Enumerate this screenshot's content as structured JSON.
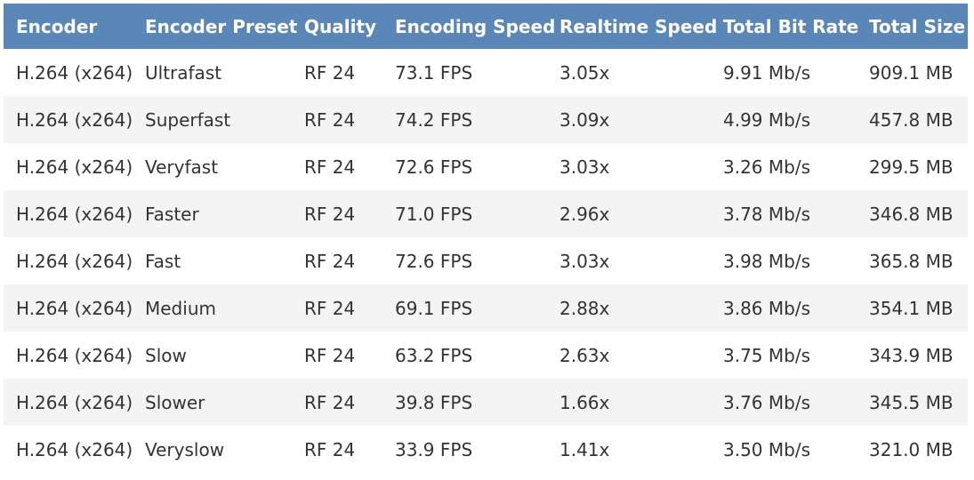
{
  "table": {
    "headers": [
      "Encoder",
      "Encoder Preset",
      "Quality",
      "Encoding Speed",
      "Realtime Speed",
      "Total Bit Rate",
      "Total Size"
    ],
    "rows": [
      [
        "H.264 (x264)",
        "Ultrafast",
        "RF 24",
        "73.1 FPS",
        "3.05x",
        "9.91 Mb/s",
        "909.1 MB"
      ],
      [
        "H.264 (x264)",
        "Superfast",
        "RF 24",
        "74.2 FPS",
        "3.09x",
        "4.99 Mb/s",
        "457.8 MB"
      ],
      [
        "H.264 (x264)",
        "Veryfast",
        "RF 24",
        "72.6 FPS",
        "3.03x",
        "3.26 Mb/s",
        "299.5 MB"
      ],
      [
        "H.264 (x264)",
        "Faster",
        "RF 24",
        "71.0 FPS",
        "2.96x",
        "3.78 Mb/s",
        "346.8 MB"
      ],
      [
        "H.264 (x264)",
        "Fast",
        "RF 24",
        "72.6 FPS",
        "3.03x",
        "3.98 Mb/s",
        "365.8 MB"
      ],
      [
        "H.264 (x264)",
        "Medium",
        "RF 24",
        "69.1 FPS",
        "2.88x",
        "3.86 Mb/s",
        "354.1 MB"
      ],
      [
        "H.264 (x264)",
        "Slow",
        "RF 24",
        "63.2 FPS",
        "2.63x",
        "3.75 Mb/s",
        "343.9 MB"
      ],
      [
        "H.264 (x264)",
        "Slower",
        "RF 24",
        "39.8 FPS",
        "1.66x",
        "3.76 Mb/s",
        "345.5 MB"
      ],
      [
        "H.264 (x264)",
        "Veryslow",
        "RF 24",
        "33.9 FPS",
        "1.41x",
        "3.50 Mb/s",
        "321.0 MB"
      ]
    ]
  },
  "colors": {
    "header_bg": "#5b86b8",
    "header_text": "#ffffff",
    "row_alt_bg": "#f4f4f4",
    "cell_text": "#333333"
  }
}
